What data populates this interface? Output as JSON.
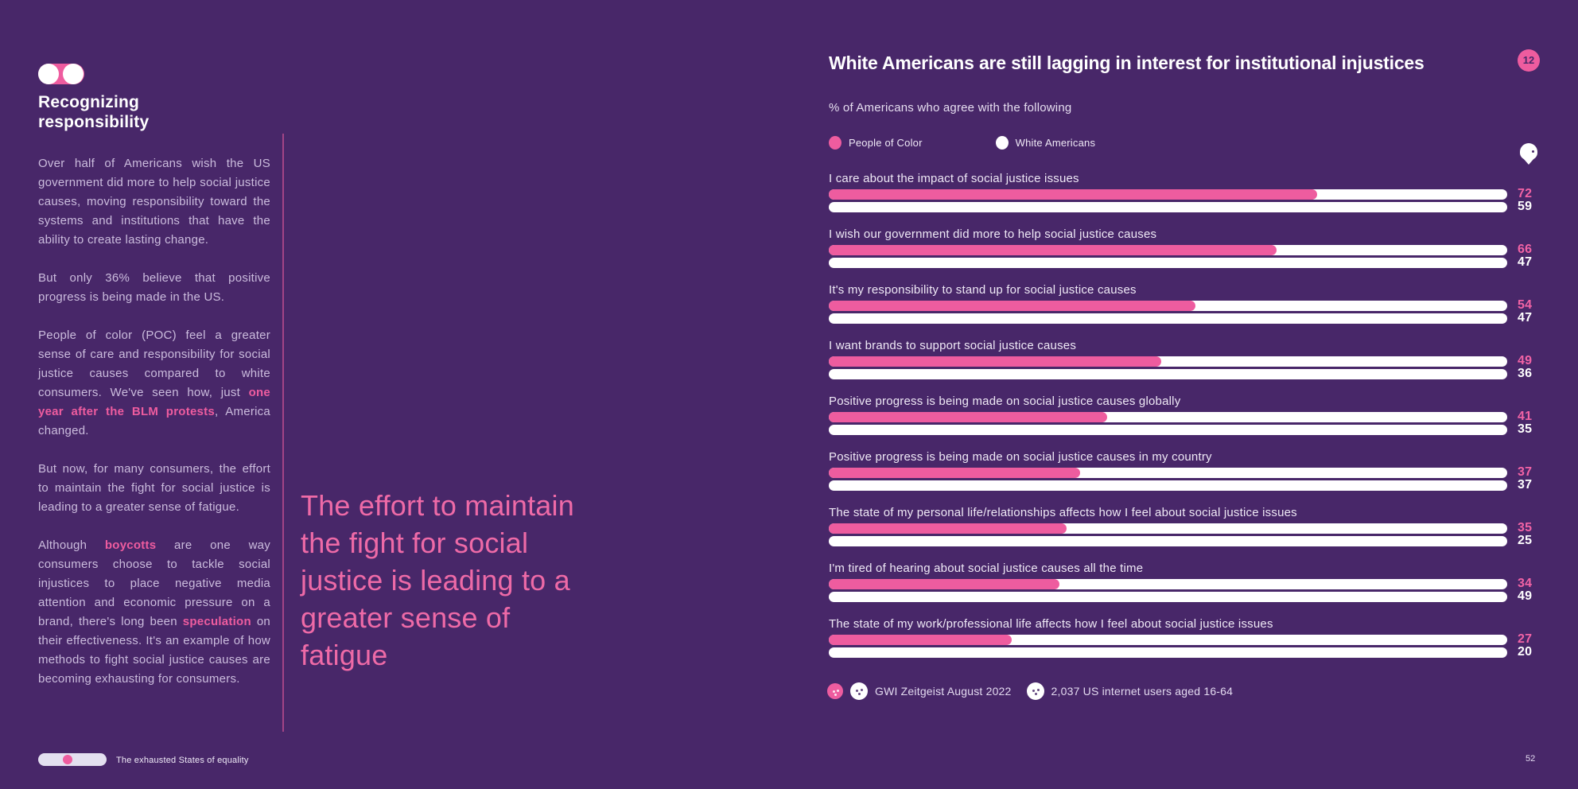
{
  "colors": {
    "background": "#482769",
    "accent_pink": "#EE5C9F",
    "white": "#FFFFFF",
    "body_text": "#CBBCDD",
    "badge_text": "#482769"
  },
  "left": {
    "heading": "Recognizing\nresponsibility",
    "paragraphs": [
      [
        {
          "t": "Over half of Americans wish the US government did more to help social justice causes, moving responsibility toward the systems and institutions that have the ability to create lasting change."
        }
      ],
      [
        {
          "t": "But only 36% believe that positive progress is being made in the US."
        }
      ],
      [
        {
          "t": "People of color (POC) feel a greater sense of care and responsibility for social justice causes compared to white consumers. We've seen how, just "
        },
        {
          "t": "one year after the BLM protests",
          "b": true
        },
        {
          "t": ", America changed."
        }
      ],
      [
        {
          "t": "But now, for many consumers, the effort to maintain the fight for social justice is leading to a greater sense of fatigue."
        }
      ],
      [
        {
          "t": "Although "
        },
        {
          "t": "boycotts",
          "b": true
        },
        {
          "t": " are one way consumers choose to tackle social injustices to place negative media attention and economic pressure on a brand, there's long been "
        },
        {
          "t": "speculation",
          "b": true
        },
        {
          "t": " on their effectiveness. It's an example of how methods to fight social justice causes are becoming exhausting for consumers."
        }
      ]
    ]
  },
  "quote": "The effort to maintain the fight for social justice is leading to a greater sense of fatigue",
  "chart": {
    "badge": "12",
    "title": "White Americans are still lagging in interest for institutional injustices",
    "subtitle": "% of Americans who agree with the following"
  },
  "chart_data": {
    "type": "bar",
    "orientation": "horizontal",
    "title": "White Americans are still lagging in interest for institutional injustices",
    "subtitle": "% of Americans who agree with the following",
    "categories": [
      "I care about the impact of social justice issues",
      "I wish our government did more to help social justice causes",
      "It's my responsibility to stand up for social justice causes",
      "I want brands to support social justice causes",
      "Positive progress is being made on social justice causes globally",
      "Positive progress is being made on social justice causes in my country",
      "The state of my personal life/relationships affects how I feel about social justice issues",
      "I'm tired of hearing about social justice causes all the time",
      "The state of my work/professional life affects how I feel about social justice issues"
    ],
    "series": [
      {
        "name": "People of Color",
        "color": "#EE5C9F",
        "values": [
          72,
          66,
          54,
          49,
          41,
          37,
          35,
          34,
          27
        ]
      },
      {
        "name": "White Americans",
        "color": "#FFFFFF",
        "values": [
          59,
          47,
          47,
          36,
          35,
          37,
          25,
          49,
          20
        ]
      }
    ],
    "xlim": [
      0,
      100
    ],
    "legend_position": "top",
    "grid": false
  },
  "source": {
    "study": "GWI Zeitgeist August 2022",
    "audience": "2,037 US internet users aged 16-64"
  },
  "footer": {
    "report_title": "The exhausted States of equality",
    "page_number": "52"
  }
}
